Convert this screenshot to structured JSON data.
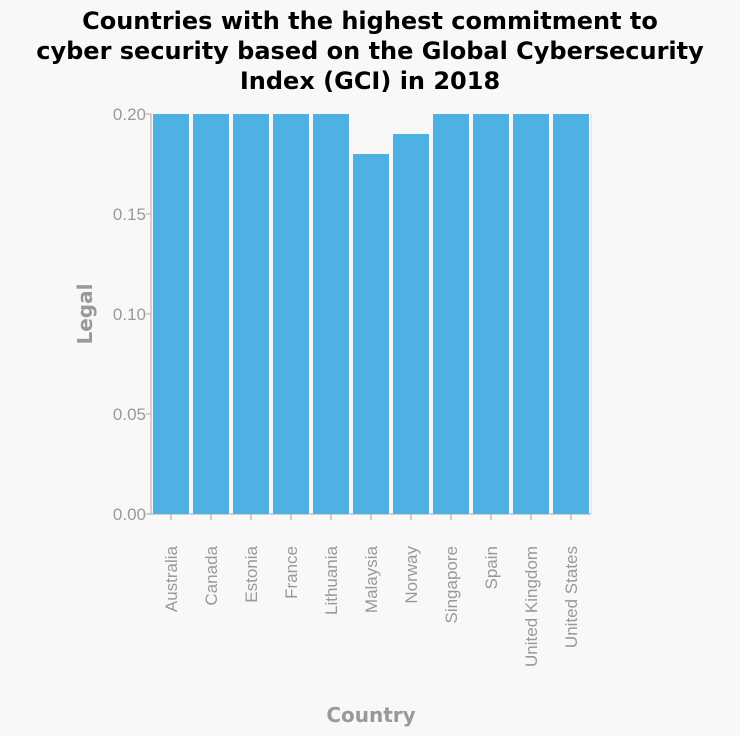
{
  "chart_data": {
    "type": "bar",
    "title": "Countries with the highest commitment to\ncyber security based on the Global Cybersecurity\nIndex (GCI) in 2018",
    "xlabel": "Country",
    "ylabel": "Legal",
    "categories": [
      "Australia",
      "Canada",
      "Estonia",
      "France",
      "Lithuania",
      "Malaysia",
      "Norway",
      "Singapore",
      "Spain",
      "United Kingdom",
      "United States"
    ],
    "values": [
      0.2,
      0.2,
      0.2,
      0.2,
      0.2,
      0.18,
      0.19,
      0.2,
      0.2,
      0.2,
      0.2
    ],
    "ylim": [
      0,
      0.2
    ],
    "yticks": [
      "0.00",
      "0.05",
      "0.10",
      "0.15",
      "0.20"
    ],
    "grid": false,
    "colors": {
      "bar": "#4fb0e4",
      "axis_text": "#999999",
      "axis_line": "#aaaaaa",
      "background": "#f8f8f8"
    }
  }
}
